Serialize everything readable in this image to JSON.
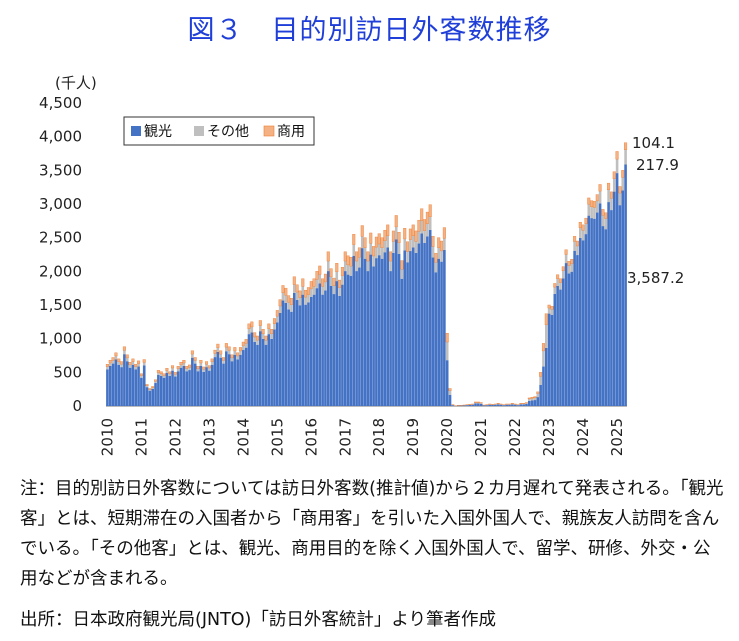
{
  "title": "図３　目的別訪日外客数推移",
  "note": "注：目的別訪日外客数については訪日外客数(推計値)から２カ月遅れて発表される。「観光客」とは、短期滞在の入国者から「商用客」を引いた入国外国人で、親族友人訪問を含んでいる。「その他客」とは、観光、商用目的を除く入国外国人で、留学、研修、外交・公用などが含まれる。",
  "source": "出所：日本政府観光局(JNTO)「訪日外客統計」より筆者作成",
  "colors": {
    "tourism": "#4472c4",
    "other": "#bfbfbf",
    "business": "#f4b183",
    "business_edge": "#ed7d31"
  },
  "chart_data": {
    "type": "bar",
    "stacked": true,
    "unit_label": "(千人)",
    "ylim": [
      0,
      4500
    ],
    "yticks": [
      "0",
      "500",
      "1,000",
      "1,500",
      "2,000",
      "2,500",
      "3,000",
      "3,500",
      "4,000",
      "4,500"
    ],
    "x_year_labels": [
      "2010",
      "2011",
      "2012",
      "2013",
      "2014",
      "2015",
      "2016",
      "2017",
      "2018",
      "2019",
      "2020",
      "2021",
      "2022",
      "2023",
      "2024",
      "2025"
    ],
    "legend": [
      "観光",
      "その他",
      "商用"
    ],
    "legend_position": "top-left",
    "annotations": [
      "104.1",
      "217.9",
      "3,587.2"
    ],
    "monthly_totals_from_jan2010": [
      620,
      680,
      720,
      790,
      700,
      660,
      880,
      760,
      650,
      700,
      620,
      670,
      480,
      690,
      320,
      260,
      290,
      390,
      530,
      510,
      480,
      560,
      510,
      600,
      500,
      590,
      650,
      680,
      590,
      610,
      820,
      720,
      590,
      680,
      580,
      660,
      600,
      700,
      830,
      920,
      820,
      720,
      930,
      880,
      760,
      870,
      790,
      870,
      950,
      990,
      1220,
      1250,
      1090,
      1040,
      1270,
      1140,
      1040,
      1220,
      1140,
      1300,
      1420,
      1580,
      1790,
      1750,
      1640,
      1600,
      1920,
      1800,
      1710,
      1890,
      1720,
      1760,
      1850,
      1890,
      2000,
      2080,
      1890,
      1960,
      2290,
      2040,
      1900,
      2120,
      1870,
      2060,
      2290,
      2230,
      2210,
      2550,
      2290,
      2350,
      2680,
      2500,
      2290,
      2570,
      2370,
      2510,
      2560,
      2500,
      2610,
      2690,
      2290,
      2600,
      2830,
      2580,
      2160,
      2640,
      2440,
      2630,
      2690,
      2600,
      2760,
      2930,
      2770,
      2880,
      2990,
      2520,
      2270,
      2500,
      2450,
      2650,
      1080,
      260,
      20,
      5,
      10,
      10,
      15,
      20,
      25,
      30,
      60,
      60,
      50,
      15,
      20,
      30,
      25,
      30,
      40,
      30,
      20,
      30,
      30,
      40,
      30,
      20,
      40,
      40,
      50,
      120,
      130,
      140,
      210,
      500,
      930,
      1370,
      1500,
      1480,
      1820,
      1950,
      1890,
      2070,
      2320,
      2150,
      2180,
      2520,
      2450,
      2730,
      2690,
      2790,
      3090,
      3050,
      3040,
      3140,
      3290,
      2920,
      2870,
      3310,
      3180,
      3480,
      3780,
      3260,
      3500,
      3909
    ]
  }
}
